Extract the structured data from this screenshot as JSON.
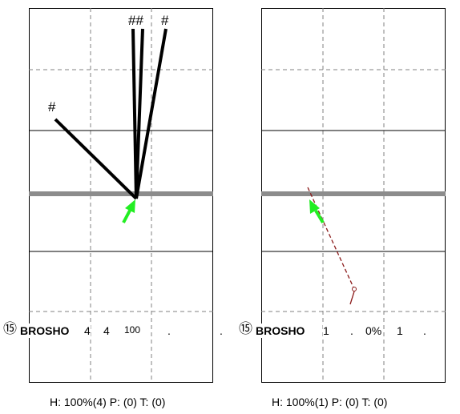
{
  "panels": [
    {
      "stats": {
        "number": "⑮",
        "name": "BROSHO",
        "a": "4",
        "b": "4",
        "c": "100",
        "d": ".",
        "e": "."
      },
      "markers": [
        "#",
        "##",
        "#"
      ],
      "footer": "H: 100%(4)  P: (0)  T: (0)"
    },
    {
      "stats": {
        "number": "⑮",
        "name": "BROSHO",
        "a": "1",
        "b": ".",
        "c": "0%",
        "d": "1",
        "e": "."
      },
      "footer": "H: 100%(1)  P: (0)  T: (0)"
    }
  ],
  "colors": {
    "gridline": "#808080",
    "target_band": "#8c8c8c",
    "arrow": "#22ee22",
    "shot_line": "#000000",
    "path_line": "#8b1a1a"
  }
}
